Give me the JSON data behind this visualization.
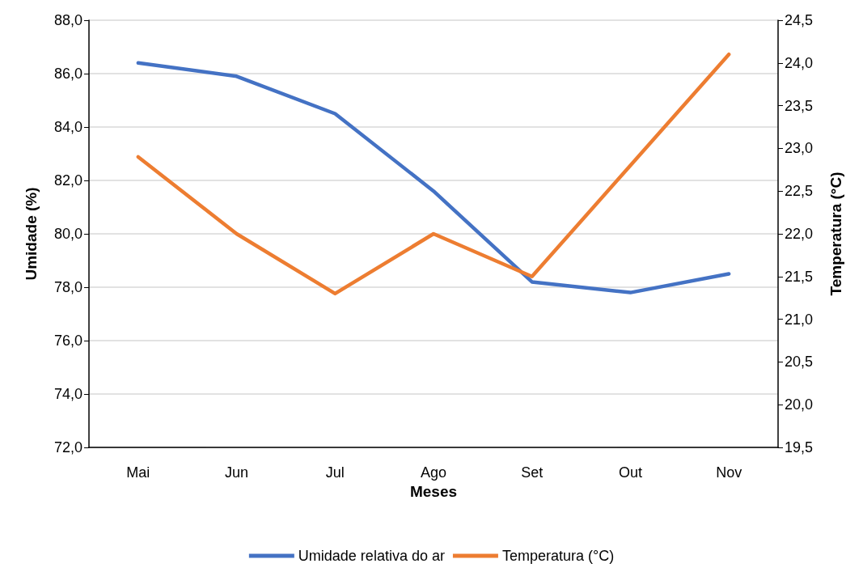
{
  "chart_data": {
    "type": "line",
    "xlabel": "Meses",
    "ylabel": "Umidade (%)",
    "y2label": "Temperatura (°C)",
    "categories": [
      "Mai",
      "Jun",
      "Jul",
      "Ago",
      "Set",
      "Out",
      "Nov"
    ],
    "series": [
      {
        "name": "Umidade relativa do ar",
        "color": "#4472c4",
        "values": [
          86.4,
          85.9,
          84.5,
          81.6,
          78.2,
          77.8,
          78.5
        ]
      },
      {
        "name": "Temperatura (°C)",
        "color": "#ed7d31",
        "axis": "y2",
        "values": [
          22.9,
          22.0,
          21.3,
          22.0,
          21.5,
          22.8,
          24.1
        ]
      }
    ],
    "ylim": [
      72,
      88
    ],
    "yticks": [
      {
        "value": 72,
        "label": "72,0"
      },
      {
        "value": 74,
        "label": "74,0"
      },
      {
        "value": 76,
        "label": "76,0"
      },
      {
        "value": 78,
        "label": "78,0"
      },
      {
        "value": 80,
        "label": "80,0"
      },
      {
        "value": 82,
        "label": "82,0"
      },
      {
        "value": 84,
        "label": "84,0"
      },
      {
        "value": 86,
        "label": "86,0"
      },
      {
        "value": 88,
        "label": "88,0"
      }
    ],
    "y2lim": [
      19.5,
      24.5
    ],
    "y2ticks": [
      {
        "value": 19.5,
        "label": "19,5"
      },
      {
        "value": 20,
        "label": "20,0"
      },
      {
        "value": 20.5,
        "label": "20,5"
      },
      {
        "value": 21,
        "label": "21,0"
      },
      {
        "value": 21.5,
        "label": "21,5"
      },
      {
        "value": 22,
        "label": "22,0"
      },
      {
        "value": 22.5,
        "label": "22,5"
      },
      {
        "value": 23,
        "label": "23,0"
      },
      {
        "value": 23.5,
        "label": "23,5"
      },
      {
        "value": 24,
        "label": "24,0"
      },
      {
        "value": 24.5,
        "label": "24,5"
      }
    ],
    "grid": "y",
    "legend": "bottom",
    "marker": "none",
    "line_style": "solid"
  }
}
